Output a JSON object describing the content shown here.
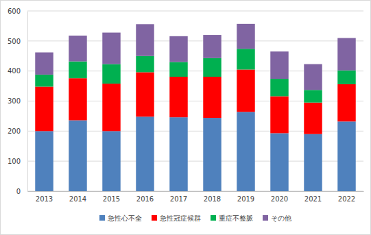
{
  "chart_data": {
    "type": "bar",
    "stacked": true,
    "grid": true,
    "legend": "bottom",
    "categories": [
      "2013",
      "2014",
      "2015",
      "2016",
      "2017",
      "2018",
      "2019",
      "2020",
      "2021",
      "2022"
    ],
    "series": [
      {
        "name": "急性心不全",
        "color": "#4f81bd",
        "values": [
          200,
          236,
          200,
          248,
          246,
          244,
          264,
          193,
          190,
          232
        ]
      },
      {
        "name": "急性冠症候群",
        "color": "#ff0000",
        "values": [
          148,
          140,
          158,
          148,
          135,
          137,
          141,
          123,
          105,
          124
        ]
      },
      {
        "name": "重症不整脈",
        "color": "#00b050",
        "values": [
          40,
          56,
          65,
          54,
          49,
          62,
          69,
          58,
          42,
          46
        ]
      },
      {
        "name": "その他",
        "color": "#8064a2",
        "values": [
          74,
          86,
          105,
          106,
          86,
          77,
          83,
          91,
          86,
          108
        ]
      }
    ],
    "ylim": [
      0,
      600
    ],
    "yticks": [
      0,
      100,
      200,
      300,
      400,
      500,
      600
    ]
  }
}
